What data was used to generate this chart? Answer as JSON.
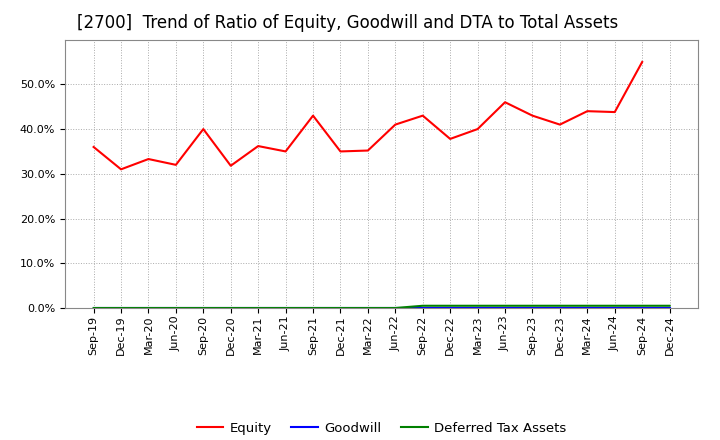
{
  "title": "[2700]  Trend of Ratio of Equity, Goodwill and DTA to Total Assets",
  "x_labels": [
    "Sep-19",
    "Dec-19",
    "Mar-20",
    "Jun-20",
    "Sep-20",
    "Dec-20",
    "Mar-21",
    "Jun-21",
    "Sep-21",
    "Dec-21",
    "Mar-22",
    "Jun-22",
    "Sep-22",
    "Dec-22",
    "Mar-23",
    "Jun-23",
    "Sep-23",
    "Dec-23",
    "Mar-24",
    "Jun-24",
    "Sep-24",
    "Dec-24"
  ],
  "equity": [
    0.36,
    0.31,
    0.333,
    0.32,
    0.4,
    0.318,
    0.362,
    0.35,
    0.43,
    0.35,
    0.352,
    0.41,
    0.43,
    0.378,
    0.4,
    0.46,
    0.43,
    0.41,
    0.44,
    0.438,
    0.55,
    null
  ],
  "goodwill": [
    0.0,
    0.0,
    0.0,
    0.0,
    0.0,
    0.0,
    0.0,
    0.0,
    0.0,
    0.0,
    0.0,
    0.0,
    0.0,
    0.0,
    0.0,
    0.0,
    0.0,
    0.0,
    0.0,
    0.0,
    0.0,
    0.0
  ],
  "dta": [
    0.0,
    0.0,
    0.0,
    0.0,
    0.0,
    0.0,
    0.0,
    0.0,
    0.0,
    0.0,
    0.0,
    0.0,
    0.005,
    0.005,
    0.005,
    0.005,
    0.005,
    0.005,
    0.005,
    0.005,
    0.005,
    0.005
  ],
  "equity_color": "#FF0000",
  "goodwill_color": "#0000FF",
  "dta_color": "#008000",
  "background_color": "#FFFFFF",
  "plot_bg_color": "#FFFFFF",
  "grid_color": "#AAAAAA",
  "ylim": [
    0.0,
    0.6
  ],
  "yticks": [
    0.0,
    0.1,
    0.2,
    0.3,
    0.4,
    0.5
  ],
  "legend_labels": [
    "Equity",
    "Goodwill",
    "Deferred Tax Assets"
  ],
  "title_fontsize": 12,
  "tick_fontsize": 8,
  "legend_fontsize": 9.5
}
